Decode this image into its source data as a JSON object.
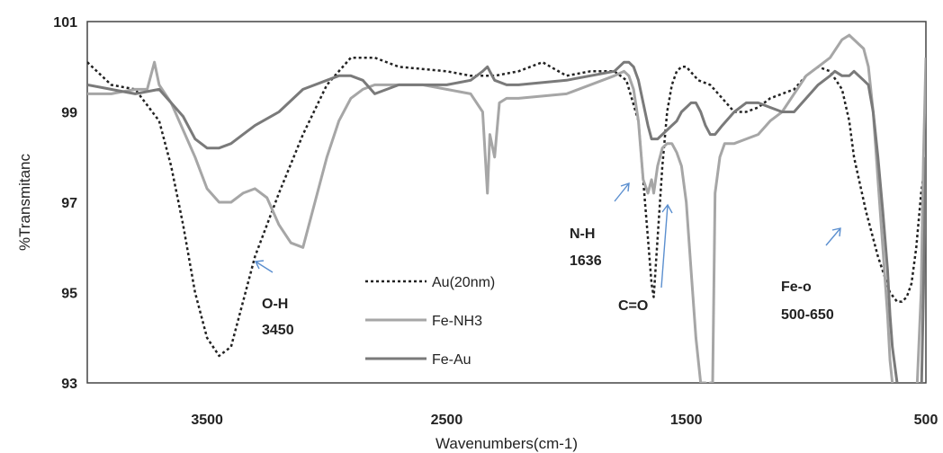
{
  "chart_data": {
    "type": "line",
    "xlabel": "Wavenumbers(cm-1)",
    "ylabel": "%Transmitanc",
    "xlim": [
      4000,
      500
    ],
    "ylim": [
      93,
      101
    ],
    "x_reversed": true,
    "grid": false,
    "legend_position": "bottom-center",
    "x_ticks": [
      {
        "value": 3500,
        "label": "3500"
      },
      {
        "value": 2500,
        "label": "2500"
      },
      {
        "value": 1500,
        "label": "1500"
      },
      {
        "value": 500,
        "label": "500"
      }
    ],
    "y_ticks": [
      {
        "value": 101,
        "label": "101"
      },
      {
        "value": 99,
        "label": "99"
      },
      {
        "value": 97,
        "label": "97"
      },
      {
        "value": 95,
        "label": "95"
      },
      {
        "value": 93,
        "label": "93"
      }
    ],
    "series": [
      {
        "name": "Au(20nm)",
        "color": "#222222",
        "style": "dotted",
        "x": [
          4000,
          3900,
          3800,
          3700,
          3650,
          3600,
          3550,
          3500,
          3450,
          3400,
          3350,
          3300,
          3200,
          3100,
          3000,
          2900,
          2800,
          2700,
          2500,
          2400,
          2300,
          2200,
          2100,
          2000,
          1900,
          1800,
          1750,
          1700,
          1680,
          1660,
          1645,
          1636,
          1620,
          1600,
          1580,
          1560,
          1540,
          1520,
          1500,
          1450,
          1400,
          1350,
          1300,
          1250,
          1200,
          1150,
          1100,
          1050,
          1000,
          950,
          900,
          850,
          820,
          800,
          750,
          700,
          650,
          620,
          600,
          580,
          560,
          540,
          520,
          500
        ],
        "y": [
          100.1,
          99.6,
          99.5,
          98.8,
          97.8,
          96.5,
          95.0,
          94.0,
          93.6,
          93.8,
          94.8,
          95.8,
          97.2,
          98.5,
          99.6,
          100.2,
          100.2,
          100.0,
          99.9,
          99.8,
          99.8,
          99.9,
          100.1,
          99.8,
          99.9,
          99.9,
          99.7,
          98.8,
          97.5,
          96.2,
          95.2,
          94.9,
          96.2,
          97.8,
          99.0,
          99.6,
          99.9,
          100.0,
          100.0,
          99.7,
          99.6,
          99.3,
          99.0,
          99.0,
          99.1,
          99.3,
          99.4,
          99.5,
          99.8,
          100.0,
          99.9,
          99.5,
          98.8,
          98.0,
          96.8,
          95.8,
          95.0,
          94.8,
          94.8,
          94.9,
          95.2,
          96.0,
          97.2,
          98.0
        ]
      },
      {
        "name": "Fe-NH3",
        "color": "#a6a6a6",
        "style": "solid",
        "x": [
          4000,
          3900,
          3800,
          3750,
          3720,
          3700,
          3650,
          3600,
          3550,
          3500,
          3450,
          3400,
          3350,
          3300,
          3250,
          3200,
          3150,
          3100,
          3050,
          3000,
          2950,
          2900,
          2850,
          2800,
          2700,
          2600,
          2500,
          2400,
          2350,
          2330,
          2320,
          2300,
          2280,
          2250,
          2200,
          2000,
          1800,
          1760,
          1740,
          1720,
          1700,
          1680,
          1660,
          1645,
          1636,
          1620,
          1600,
          1580,
          1560,
          1540,
          1520,
          1500,
          1480,
          1460,
          1440,
          1420,
          1410,
          1400,
          1390,
          1380,
          1360,
          1340,
          1300,
          1250,
          1200,
          1150,
          1100,
          1000,
          950,
          900,
          850,
          820,
          800,
          780,
          760,
          740,
          720,
          700,
          680,
          660,
          650,
          640,
          620,
          600,
          580,
          560,
          540,
          520,
          510,
          500
        ],
        "y": [
          99.4,
          99.4,
          99.5,
          99.5,
          100.1,
          99.6,
          99.2,
          98.6,
          98.0,
          97.3,
          97.0,
          97.0,
          97.2,
          97.3,
          97.1,
          96.5,
          96.1,
          96.0,
          97.0,
          98.0,
          98.8,
          99.3,
          99.5,
          99.6,
          99.6,
          99.6,
          99.5,
          99.4,
          99.0,
          97.2,
          98.5,
          98.0,
          99.2,
          99.3,
          99.3,
          99.4,
          99.8,
          99.9,
          99.8,
          99.5,
          98.8,
          97.5,
          97.2,
          97.5,
          97.2,
          97.8,
          98.2,
          98.3,
          98.3,
          98.1,
          97.8,
          97.0,
          95.5,
          94.0,
          93.0,
          93.0,
          92.5,
          93.0,
          93.0,
          97.2,
          98.0,
          98.3,
          98.3,
          98.4,
          98.5,
          98.8,
          99.0,
          99.8,
          100.0,
          100.2,
          100.6,
          100.7,
          100.6,
          100.5,
          100.4,
          100.0,
          99.0,
          97.5,
          96.0,
          94.5,
          93.5,
          93.0,
          92.5,
          92.5,
          92.5,
          92.5,
          92.5,
          95.0,
          98.0,
          100.2
        ]
      },
      {
        "name": "Fe-Au",
        "color": "#7a7a7a",
        "style": "solid",
        "x": [
          4000,
          3900,
          3800,
          3700,
          3650,
          3600,
          3550,
          3500,
          3450,
          3400,
          3350,
          3300,
          3200,
          3100,
          3000,
          2950,
          2900,
          2850,
          2800,
          2700,
          2600,
          2500,
          2400,
          2350,
          2330,
          2310,
          2300,
          2250,
          2200,
          2000,
          1800,
          1760,
          1740,
          1720,
          1700,
          1680,
          1660,
          1645,
          1636,
          1620,
          1600,
          1580,
          1560,
          1540,
          1520,
          1500,
          1480,
          1460,
          1440,
          1420,
          1400,
          1380,
          1350,
          1300,
          1250,
          1200,
          1150,
          1100,
          1050,
          1000,
          950,
          900,
          880,
          850,
          820,
          800,
          780,
          760,
          740,
          720,
          700,
          680,
          660,
          650,
          640,
          620,
          600,
          580,
          560,
          540,
          520,
          510,
          500
        ],
        "y": [
          99.6,
          99.5,
          99.4,
          99.5,
          99.2,
          98.9,
          98.4,
          98.2,
          98.2,
          98.3,
          98.5,
          98.7,
          99.0,
          99.5,
          99.7,
          99.8,
          99.8,
          99.7,
          99.4,
          99.6,
          99.6,
          99.6,
          99.7,
          99.9,
          100.0,
          99.8,
          99.7,
          99.6,
          99.6,
          99.7,
          99.9,
          100.1,
          100.1,
          100.0,
          99.7,
          99.2,
          98.7,
          98.4,
          98.4,
          98.4,
          98.5,
          98.6,
          98.7,
          98.8,
          99.0,
          99.1,
          99.2,
          99.2,
          99.0,
          98.7,
          98.5,
          98.5,
          98.7,
          99.0,
          99.2,
          99.2,
          99.1,
          99.0,
          99.0,
          99.3,
          99.6,
          99.8,
          99.9,
          99.8,
          99.8,
          99.9,
          99.8,
          99.7,
          99.6,
          99.0,
          98.0,
          96.8,
          95.5,
          94.5,
          93.8,
          93.0,
          92.5,
          92.5,
          92.5,
          92.5,
          92.5,
          95.0,
          98.0
        ]
      }
    ],
    "annotations": [
      {
        "id": "oh",
        "lines": [
          "O-H",
          "3450"
        ]
      },
      {
        "id": "nh",
        "lines": [
          "N-H",
          "1636"
        ]
      },
      {
        "id": "co",
        "lines": [
          "C=O"
        ]
      },
      {
        "id": "feo",
        "lines": [
          "Fe-o",
          "500-650"
        ]
      }
    ],
    "arrow_color": "#5b8fcf"
  }
}
